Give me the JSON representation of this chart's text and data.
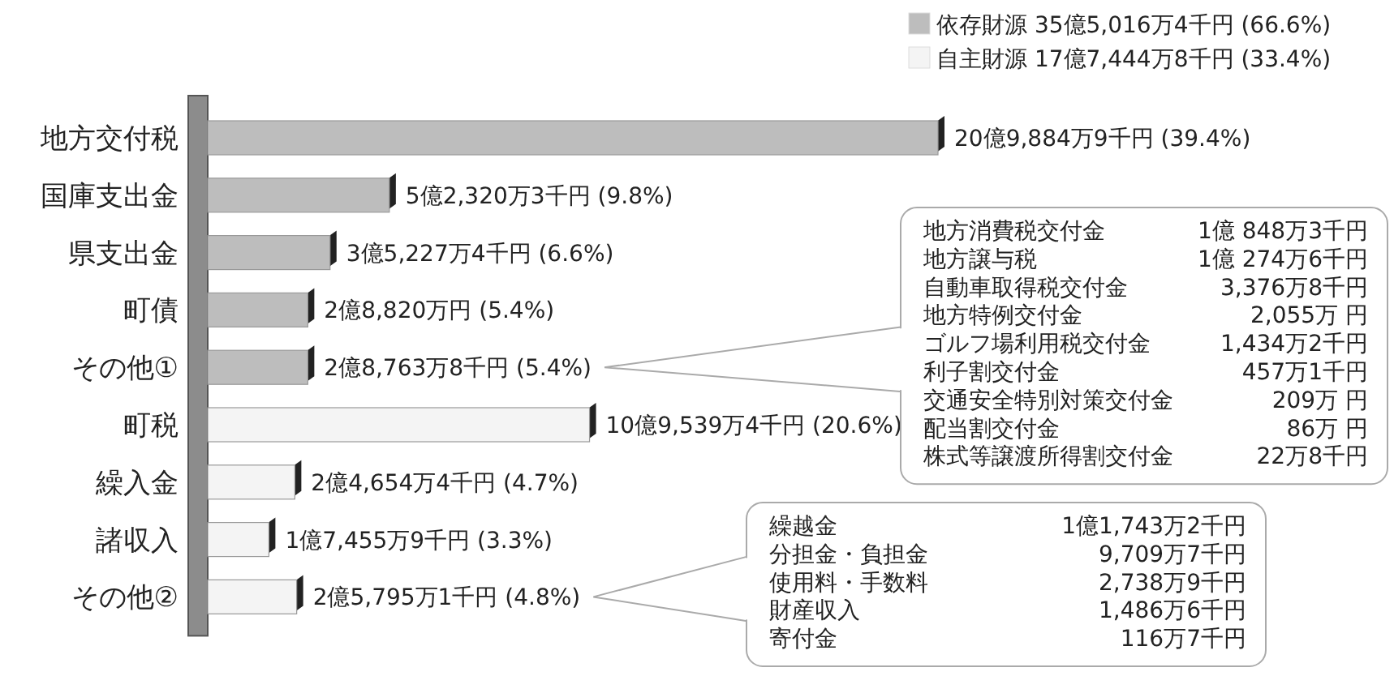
{
  "chart_data": {
    "type": "bar",
    "orientation": "horizontal",
    "stacked": true,
    "legend": "top right",
    "categories": [
      "地方交付税",
      "国庫支出金",
      "県支出金",
      "町債",
      "その他①",
      "町税",
      "繰入金",
      "諸収入",
      "その他②"
    ],
    "series": [
      {
        "name": "依存財源 35億5,016万4千円 (66.6%)",
        "color": "#bdbdbd",
        "values": [
          39.4,
          9.8,
          6.6,
          5.4,
          5.4,
          null,
          null,
          null,
          null
        ],
        "value_labels": [
          "20億9,884万9千円 (39.4%)",
          "5億2,320万3千円 (9.8%)",
          "3億5,227万4千円 (6.6%)",
          "2億8,820万円 (5.4%)",
          "2億8,763万8千円 (5.4%)",
          null,
          null,
          null,
          null
        ]
      },
      {
        "name": "自主財源 17億7,444万8千円 (33.4%)",
        "color": "#f4f4f4",
        "values": [
          null,
          null,
          null,
          null,
          null,
          20.6,
          4.7,
          3.3,
          4.8
        ],
        "value_labels": [
          null,
          null,
          null,
          null,
          null,
          "10億9,539万4千円 (20.6%)",
          "2億4,654万4千円 (4.7%)",
          "1億7,455万9千円 (3.3%)",
          "2億5,795万1千円 (4.8%)"
        ]
      }
    ],
    "annotations": [
      "地方消費税交付金",
      "1億 848万3千円",
      "地方譲与税",
      "1億 274万6千円",
      "自動車取得税交付金",
      "3,376万8千円",
      "地方特例交付金",
      "2,055万 円",
      "ゴルフ場利用税交付金",
      "1,434万2千円",
      "利子割交付金",
      "457万1千円",
      "交通安全特別対策交付金",
      "209万 円",
      "配当割交付金",
      "86万 円",
      "株式等譲渡所得割交付金",
      "22万8千円",
      "繰越金",
      "1億1,743万2千円",
      "分担金・負担金",
      "9,709万7千円",
      "使用料・手数料",
      "2,738万9千円",
      "財産収入",
      "1,486万6千円",
      "寄付金",
      "116万7千円"
    ]
  }
}
